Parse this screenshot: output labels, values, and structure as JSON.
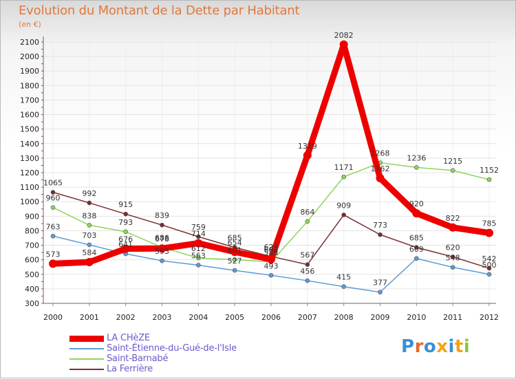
{
  "chart_data": {
    "type": "line",
    "title": "Evolution du Montant de la Dette par Habitant",
    "subtitle": "(en €)",
    "xlabel": "",
    "ylabel": "",
    "x": [
      "2000",
      "2001",
      "2002",
      "2003",
      "2004",
      "2005",
      "2006",
      "2007",
      "2008",
      "2009",
      "2010",
      "2011",
      "2012"
    ],
    "yticks": [
      300,
      400,
      500,
      600,
      700,
      800,
      900,
      1000,
      1100,
      1200,
      1300,
      1400,
      1500,
      1600,
      1700,
      1800,
      1900,
      2000,
      2100
    ],
    "ylim": [
      300,
      2100
    ],
    "grid": true,
    "legend_position": "bottom-left",
    "series": [
      {
        "name": "LA CHèZE",
        "color": "#ee0000",
        "width": 9,
        "values": [
          573,
          584,
          676,
          678,
          714,
          654,
          603,
          1319,
          2082,
          1162,
          920,
          822,
          785
        ]
      },
      {
        "name": "Saint-Étienne-du-Gué-de-l'Isle",
        "color": "#5b9bd5",
        "width": 1.5,
        "values": [
          763,
          703,
          641,
          593,
          563,
          527,
          493,
          456,
          415,
          377,
          609,
          548,
          500
        ]
      },
      {
        "name": "Saint-Barnabé",
        "color": "#8fd45a",
        "width": 1.5,
        "values": [
          960,
          838,
          793,
          686,
          612,
          601,
          585,
          864,
          1171,
          1268,
          1236,
          1215,
          1152
        ]
      },
      {
        "name": "La Ferrière",
        "color": "#7a2d2d",
        "width": 1.5,
        "values": [
          1065,
          992,
          915,
          839,
          759,
          685,
          623,
          567,
          909,
          773,
          685,
          620,
          542
        ]
      }
    ]
  },
  "logo": {
    "letters": [
      {
        "ch": "P",
        "color": "#3a8fd6"
      },
      {
        "ch": "r",
        "color": "#e26b2b"
      },
      {
        "ch": "o",
        "color": "#3a8fd6"
      },
      {
        "ch": "x",
        "color": "#f2a21a"
      },
      {
        "ch": "i",
        "color": "#3a8fd6"
      },
      {
        "ch": "t",
        "color": "#f2a21a"
      },
      {
        "ch": "i",
        "color": "#8cc63f"
      }
    ]
  }
}
